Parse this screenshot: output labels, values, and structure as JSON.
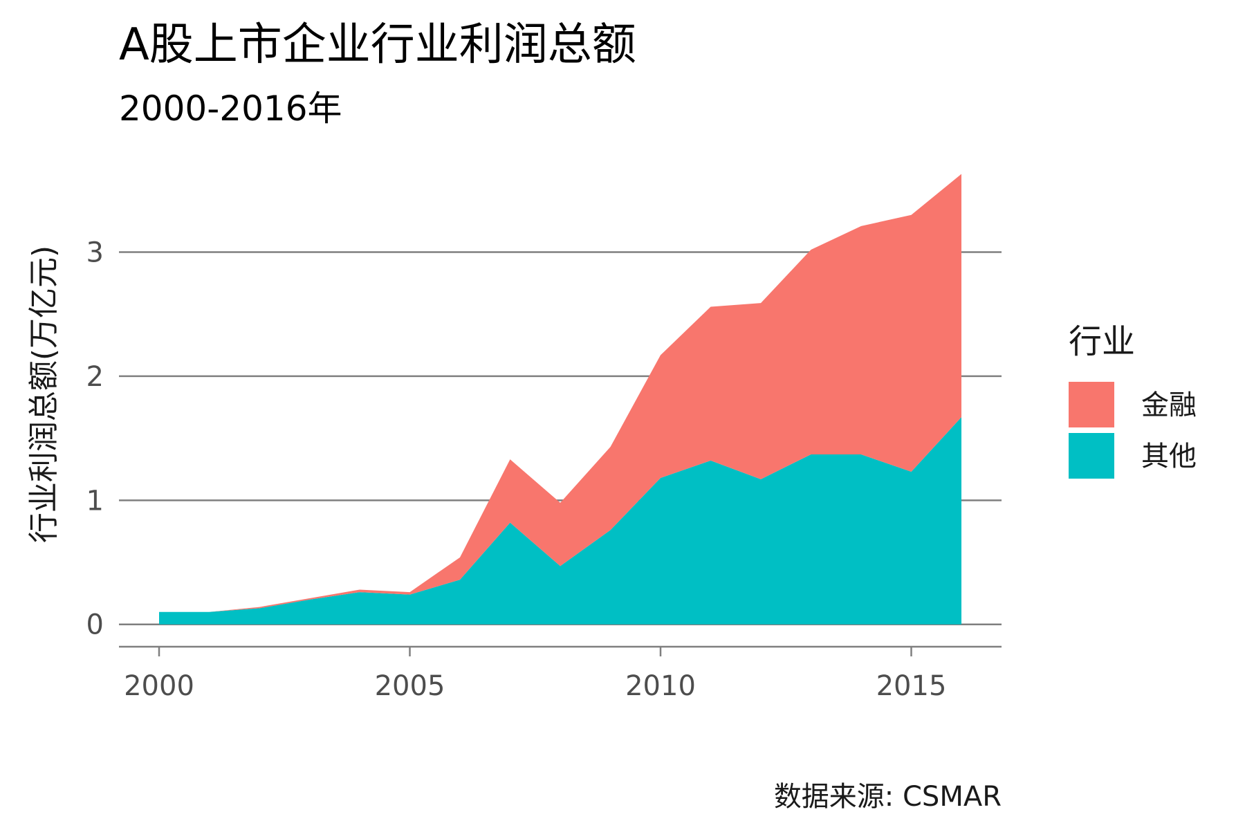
{
  "chart_data": {
    "type": "area",
    "stacked": true,
    "title": "A股上市企业行业利润总额",
    "subtitle": "2000-2016年",
    "ylabel": "行业利润总额(万亿元)",
    "xlabel": "",
    "caption": "数据来源: CSMAR",
    "x": [
      2000,
      2001,
      2002,
      2003,
      2004,
      2005,
      2006,
      2007,
      2008,
      2009,
      2010,
      2011,
      2012,
      2013,
      2014,
      2015,
      2016
    ],
    "xlim": [
      1999.2,
      2016.8
    ],
    "ylim": [
      -0.18,
      3.75
    ],
    "x_ticks": [
      2000,
      2005,
      2010,
      2015
    ],
    "y_ticks": [
      0,
      1,
      2,
      3
    ],
    "grid": "horizontal-major",
    "legend": {
      "title": "行业",
      "position": "right"
    },
    "series": [
      {
        "name": "其他",
        "color": "#00BFC4",
        "values": [
          0.1,
          0.1,
          0.13,
          0.2,
          0.26,
          0.24,
          0.36,
          0.82,
          0.47,
          0.76,
          1.18,
          1.32,
          1.17,
          1.37,
          1.37,
          1.23,
          1.67
        ]
      },
      {
        "name": "金融",
        "color": "#F8766D",
        "values": [
          0.0,
          0.0,
          0.01,
          0.01,
          0.02,
          0.02,
          0.18,
          0.51,
          0.51,
          0.67,
          0.99,
          1.24,
          1.42,
          1.65,
          1.84,
          2.07,
          1.96
        ]
      }
    ],
    "legend_order": [
      "金融",
      "其他"
    ]
  }
}
